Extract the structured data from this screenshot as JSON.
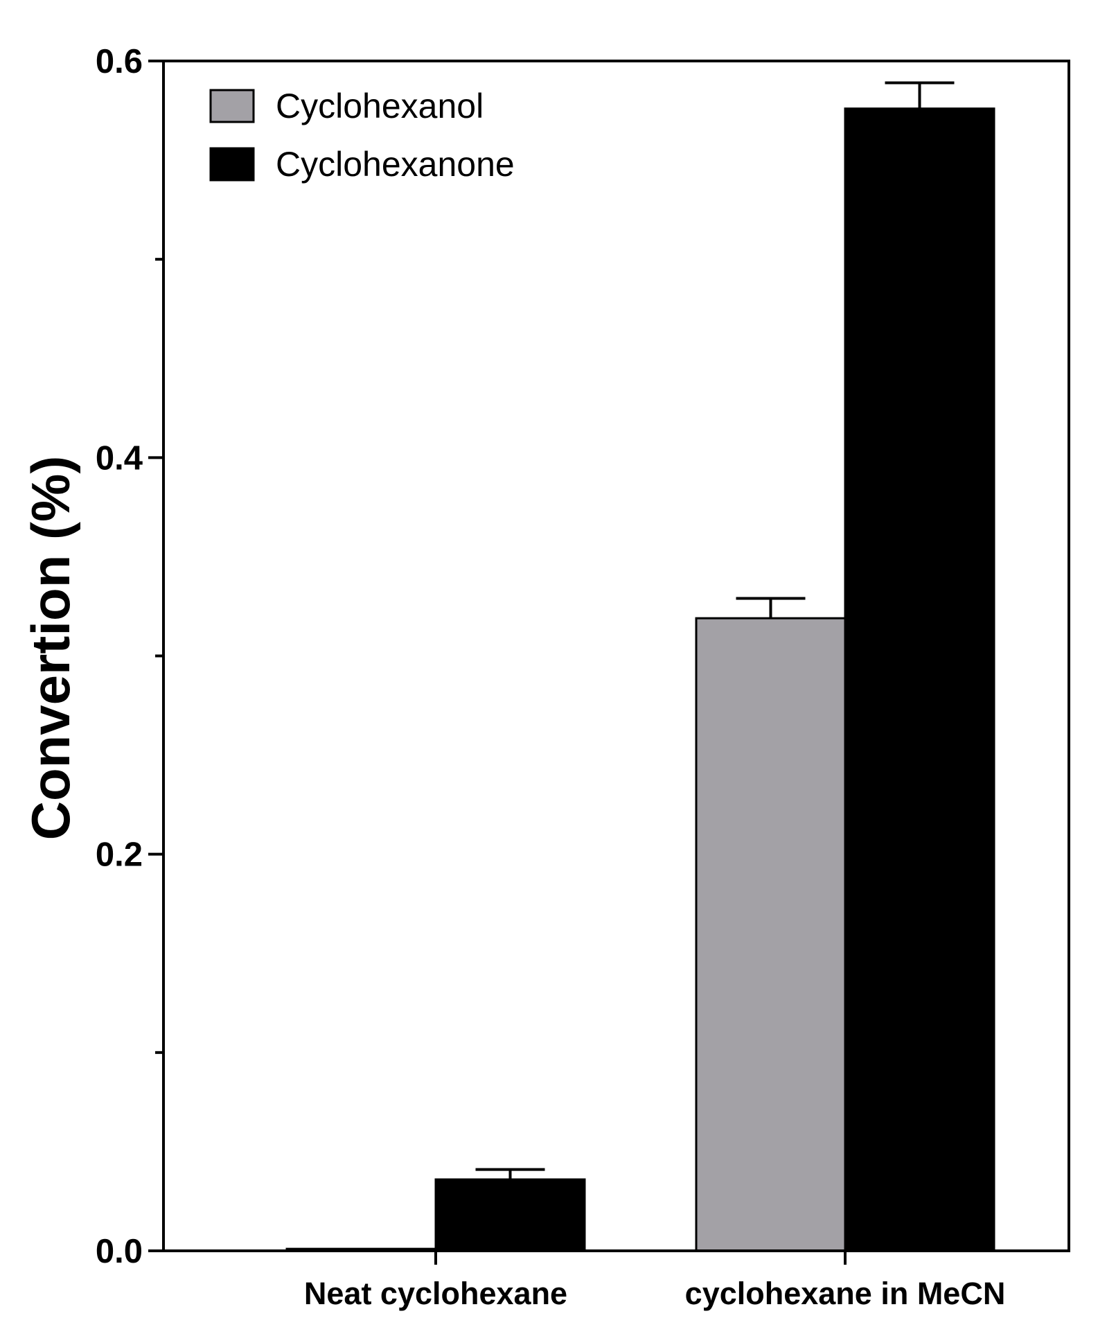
{
  "chart_data": {
    "type": "bar",
    "categories": [
      "Neat cyclohexane",
      "cyclohexane in MeCN"
    ],
    "series": [
      {
        "name": "Cyclohexanol",
        "values": [
          0.001,
          0.319
        ],
        "error": [
          0.0,
          0.01
        ],
        "color": "#a3a1a6"
      },
      {
        "name": "Cyclohexanone",
        "values": [
          0.036,
          0.576
        ],
        "error": [
          0.005,
          0.013
        ],
        "color": "#000000"
      }
    ],
    "ylabel": "Convertion (%)",
    "xlabel": "",
    "ylim": [
      0,
      0.6
    ],
    "yticks": [
      "0.0",
      "0.2",
      "0.4",
      "0.6"
    ],
    "yticks_values": [
      0,
      0.2,
      0.4,
      0.6
    ],
    "minor_ticks": [
      0.1,
      0.3,
      0.5
    ],
    "grid": false,
    "legend_position": "top-left"
  }
}
